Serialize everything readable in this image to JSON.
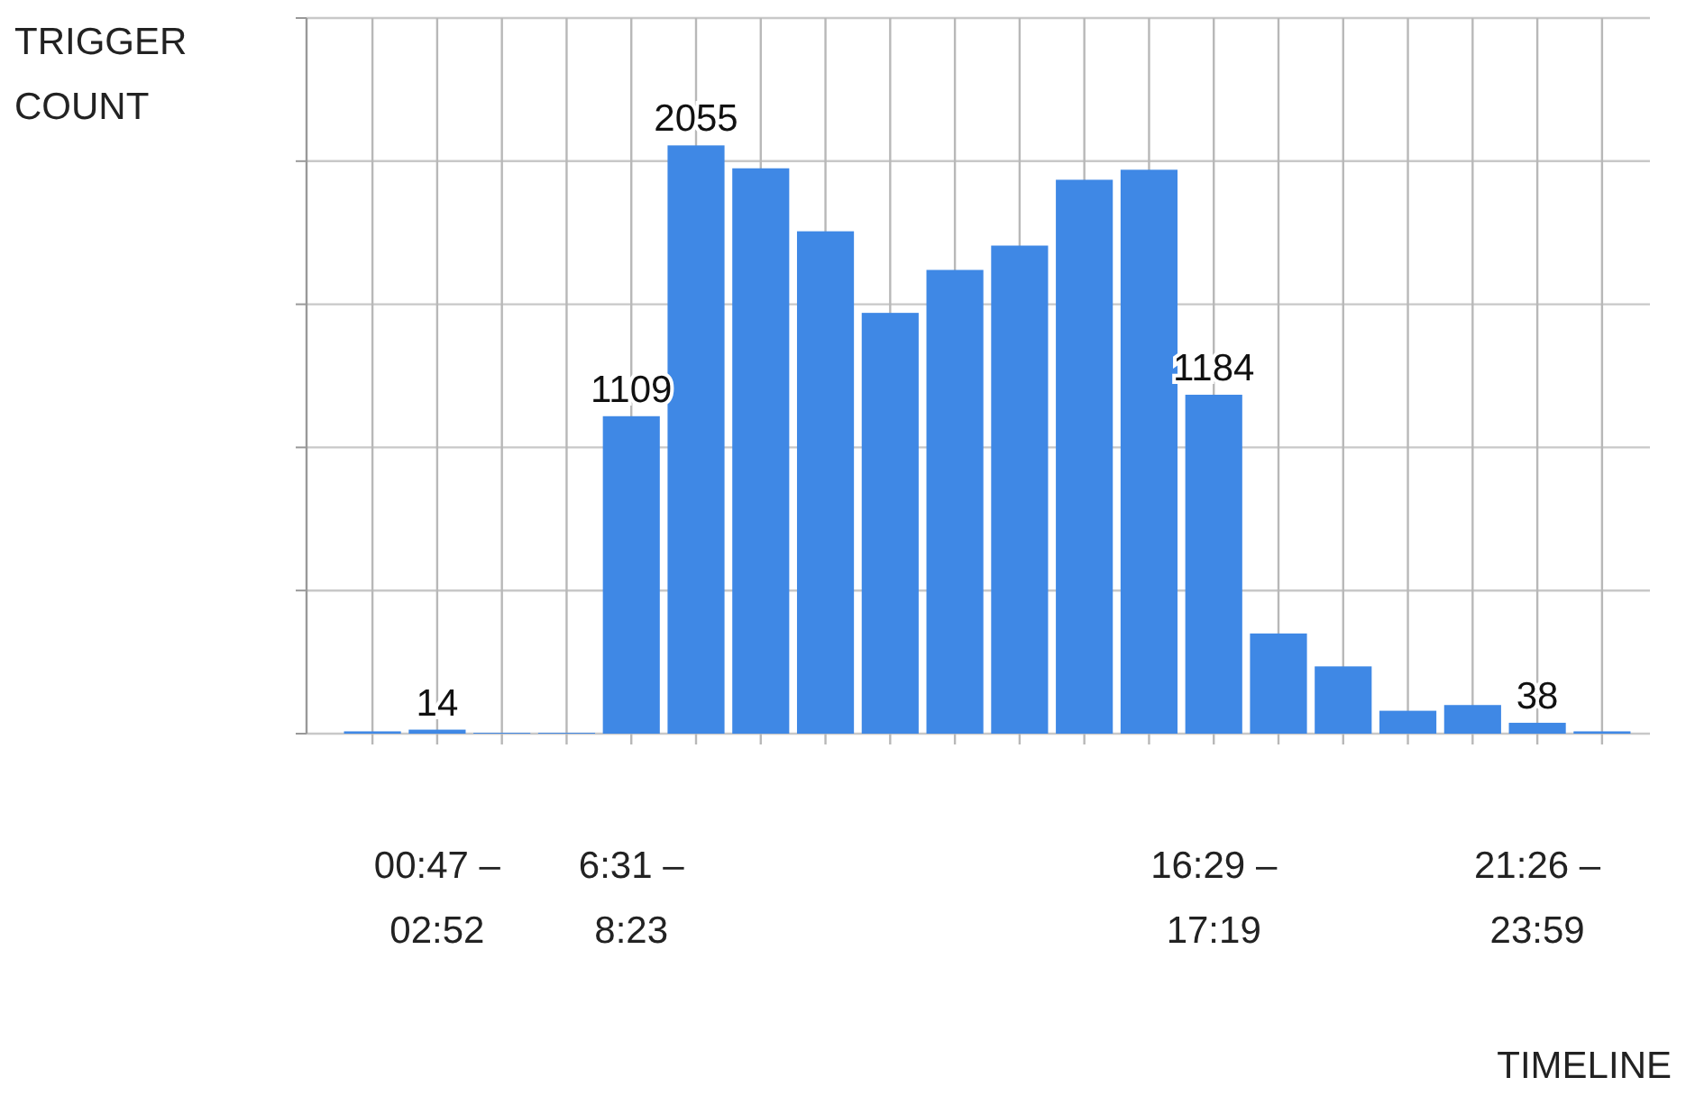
{
  "chart_data": {
    "type": "bar",
    "xlabel": "TIMELINE",
    "ylabel": "TRIGGER COUNT",
    "categories": [
      null,
      "00:47 – 02:52",
      null,
      null,
      "6:31 – 8:23",
      null,
      null,
      null,
      null,
      null,
      null,
      null,
      null,
      "16:29 – 17:19",
      null,
      null,
      null,
      null,
      "21:26 – 23:59",
      null
    ],
    "values": [
      8,
      14,
      3,
      3,
      1109,
      2055,
      1975,
      1755,
      1470,
      1620,
      1705,
      1935,
      1970,
      1184,
      350,
      235,
      80,
      100,
      38,
      8
    ],
    "value_labels": [
      null,
      "14",
      null,
      null,
      "1109",
      "2055",
      null,
      null,
      null,
      null,
      null,
      null,
      null,
      "1184",
      null,
      null,
      null,
      null,
      "38",
      null
    ],
    "color": "#3f88e5",
    "ylim": [
      0,
      2500
    ],
    "yticks": [
      {
        "value": 0,
        "label": null
      },
      {
        "value": 500,
        "label": null
      },
      {
        "value": 1000,
        "label": null
      },
      {
        "value": 1500,
        "label": null
      },
      {
        "value": 2000,
        "label": null
      },
      {
        "value": 2500,
        "label": null
      }
    ],
    "grid": true
  }
}
